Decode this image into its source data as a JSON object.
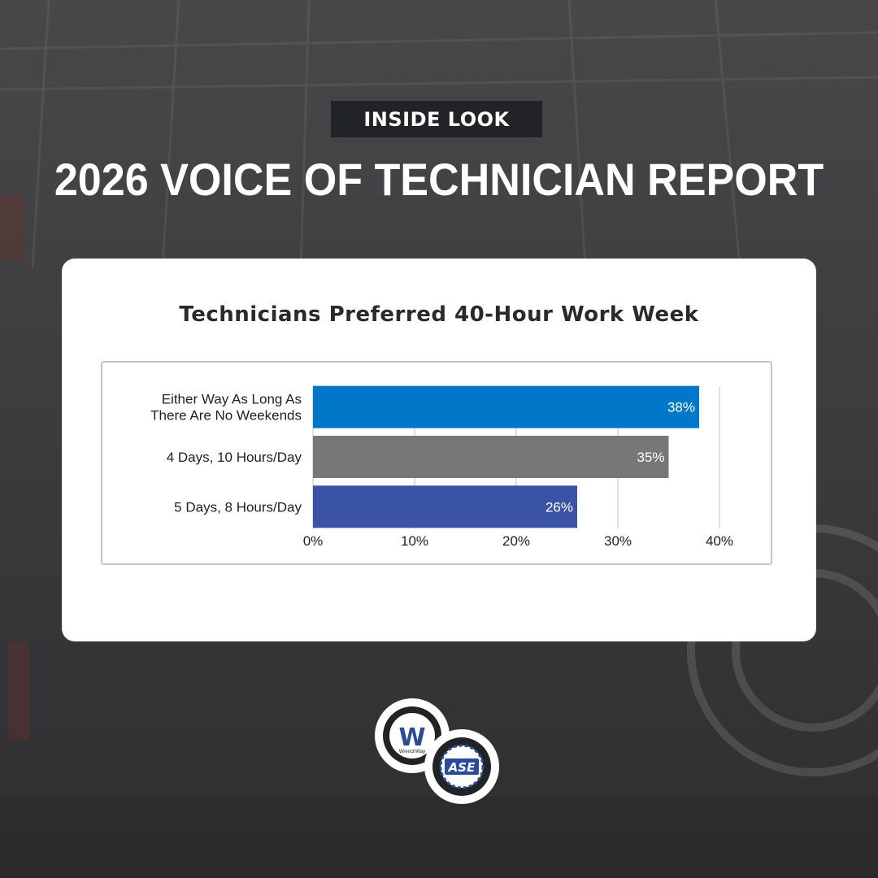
{
  "badge": "INSIDE LOOK",
  "headline": "2026 VOICE OF TECHNICIAN REPORT",
  "colors": {
    "background": "#3a3a3c",
    "badge_bg": "#222326",
    "bar_1": "#0077c8",
    "bar_2": "#777777",
    "bar_3": "#3a53a4"
  },
  "logos": {
    "wrenchway_text": "WrenchWay",
    "wrenchway_letter": "W",
    "ase_text": "ASE"
  },
  "chart_data": {
    "type": "bar",
    "orientation": "horizontal",
    "title": "Technicians Preferred 40-Hour Work Week",
    "categories": [
      [
        "Either Way As Long As",
        "There Are No Weekends"
      ],
      [
        "4 Days, 10 Hours/Day"
      ],
      [
        "5 Days, 8 Hours/Day"
      ]
    ],
    "values": [
      38,
      35,
      26
    ],
    "data_labels": [
      "38%",
      "35%",
      "26%"
    ],
    "xlim": [
      0,
      40
    ],
    "xticks": [
      0,
      10,
      20,
      30,
      40
    ],
    "xtick_labels": [
      "0%",
      "10%",
      "20%",
      "30%",
      "40%"
    ],
    "grid": true,
    "xlabel": "",
    "ylabel": ""
  }
}
